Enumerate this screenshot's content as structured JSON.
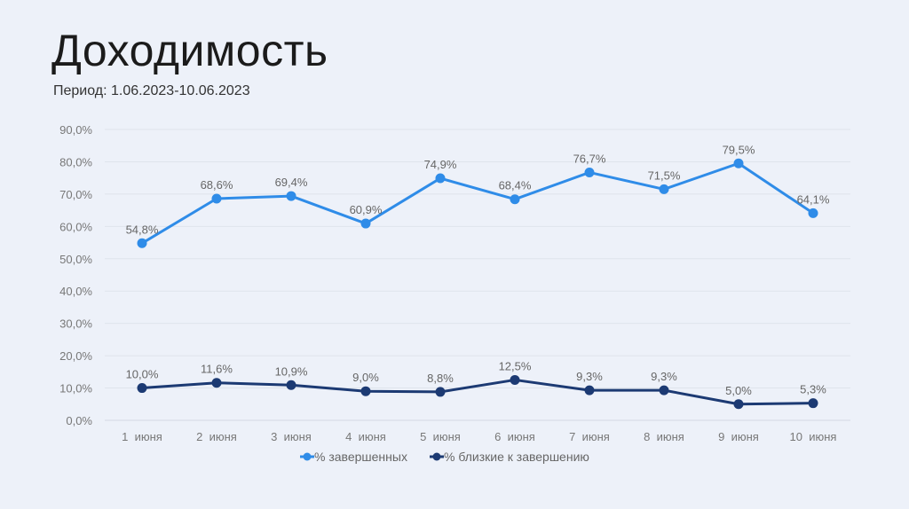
{
  "page": {
    "title": "Доходимость",
    "subtitle": "Период: 1.06.2023-10.06.2023"
  },
  "colors": {
    "completed": "#2f8ce8",
    "near_completion": "#1c3a73",
    "background": "#edf1f9"
  },
  "chart_data": {
    "type": "line",
    "categories": [
      "1  июня",
      "2  июня",
      "3  июня",
      "4  июня",
      "5  июня",
      "6  июня",
      "7  июня",
      "8  июня",
      "9  июня",
      "10  июня"
    ],
    "series": [
      {
        "name": "% завершенных",
        "values": [
          54.8,
          68.6,
          69.4,
          60.9,
          74.9,
          68.4,
          76.7,
          71.5,
          79.5,
          64.1
        ],
        "labels": [
          "54,8%",
          "68,6%",
          "69,4%",
          "60,9%",
          "74,9%",
          "68,4%",
          "76,7%",
          "71,5%",
          "79,5%",
          "64,1%"
        ]
      },
      {
        "name": "% близкие к завершению",
        "values": [
          10.0,
          11.6,
          10.9,
          9.0,
          8.8,
          12.5,
          9.3,
          9.3,
          5.0,
          5.3
        ],
        "labels": [
          "10,0%",
          "11,6%",
          "10,9%",
          "9,0%",
          "8,8%",
          "12,5%",
          "9,3%",
          "9,3%",
          "5,0%",
          "5,3%"
        ]
      }
    ],
    "y_ticks": [
      "0,0%",
      "10,0%",
      "20,0%",
      "30,0%",
      "40,0%",
      "50,0%",
      "60,0%",
      "70,0%",
      "80,0%",
      "90,0%"
    ],
    "ylim": [
      0,
      90
    ],
    "grid": true,
    "legend_position": "bottom"
  }
}
